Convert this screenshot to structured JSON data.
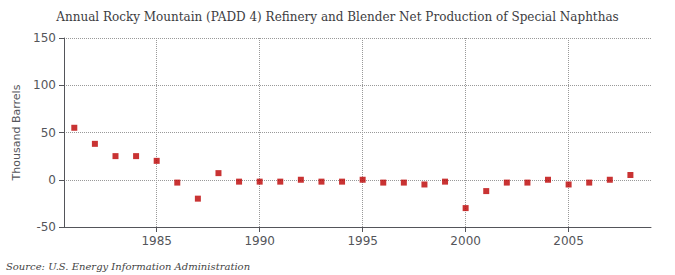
{
  "chart_data": {
    "type": "scatter",
    "title": "Annual Rocky Mountain (PADD 4) Refinery and Blender Net Production of Special Naphthas",
    "ylabel": "Thousand Barrels",
    "annotations": [
      "Source: U.S. Energy Information Administration"
    ],
    "x": [
      1981,
      1982,
      1983,
      1984,
      1985,
      1986,
      1987,
      1988,
      1989,
      1990,
      1991,
      1992,
      1993,
      1994,
      1995,
      1996,
      1997,
      1998,
      1999,
      2000,
      2001,
      2002,
      2003,
      2004,
      2005,
      2006,
      2007,
      2008
    ],
    "values": [
      55,
      38,
      25,
      25,
      20,
      -3,
      -20,
      7,
      -2,
      -2,
      -2,
      0,
      -2,
      -2,
      0,
      -3,
      -3,
      -5,
      -2,
      -30,
      -12,
      -3,
      -3,
      0,
      -5,
      -3,
      0,
      5
    ],
    "color": "#bb0000",
    "marker": "square",
    "xlim": [
      1980.5,
      2009
    ],
    "xticks": [
      1985,
      1990,
      1995,
      2000,
      2005
    ],
    "ylim": [
      -50,
      150
    ],
    "yticks": [
      -50,
      0,
      50,
      100,
      150
    ],
    "grid": true
  }
}
